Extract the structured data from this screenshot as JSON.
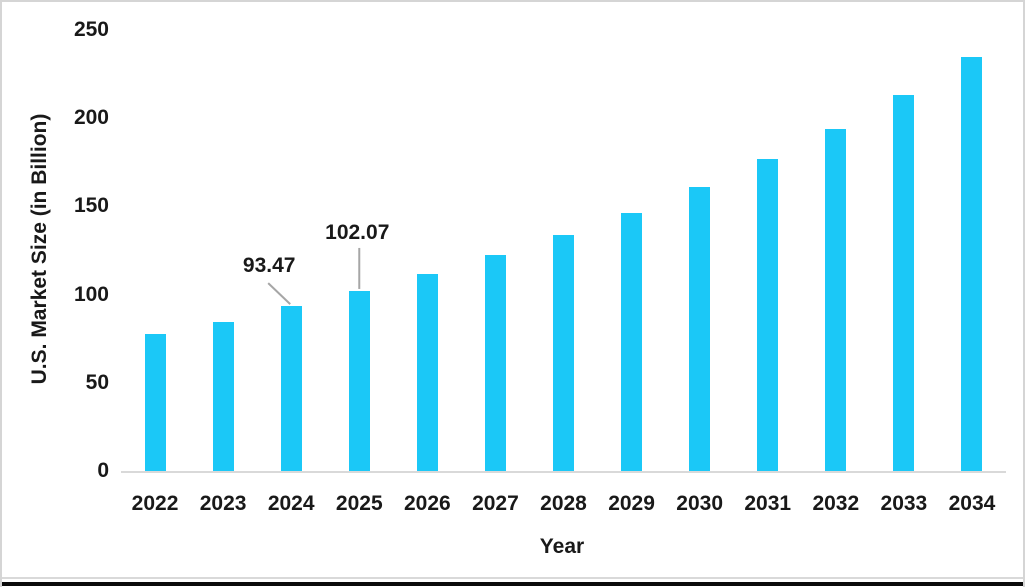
{
  "chart_data": {
    "type": "bar",
    "title": "",
    "xlabel": "Year",
    "ylabel": "U.S. Market Size (in Billion)",
    "categories": [
      "2022",
      "2023",
      "2024",
      "2025",
      "2026",
      "2027",
      "2028",
      "2029",
      "2030",
      "2031",
      "2032",
      "2033",
      "2034"
    ],
    "values": [
      77.4,
      84.7,
      93.47,
      102.07,
      111.8,
      122.5,
      133.7,
      146.5,
      160.9,
      176.8,
      193.8,
      212.9,
      234.6
    ],
    "ylim": [
      0,
      250
    ],
    "yticks": [
      0,
      50,
      100,
      150,
      200,
      250
    ],
    "grid": "off",
    "legend": "none",
    "bar_color": "#1bc8f7",
    "axis_line_color": "#d9d9d9",
    "leader_line_color": "#a6a6a6",
    "annotations": [
      {
        "category": "2024",
        "label": "93.47",
        "leader": "diagonal"
      },
      {
        "category": "2025",
        "label": "102.07",
        "leader": "vertical"
      }
    ]
  }
}
